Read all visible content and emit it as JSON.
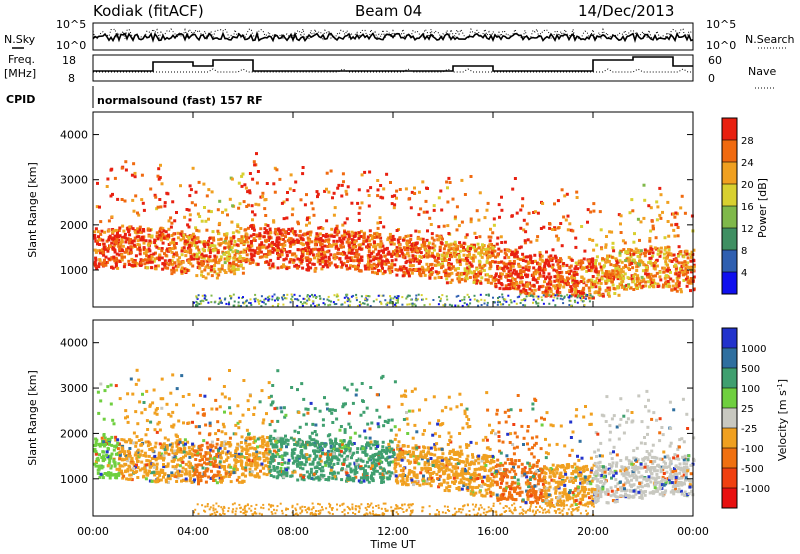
{
  "header": {
    "station": "Kodiak (fitACF)",
    "beam": "Beam 04",
    "date": "14/Dec/2013"
  },
  "aux_panels": {
    "nsky_label": "N.Sky",
    "nsearch_label": "N.Search",
    "freq_label_1": "Freq.",
    "freq_label_2": "[MHz]",
    "nave_label": "Nave",
    "cpid_label": "CPID",
    "cpid_value": "normalsound (fast) 157 RF",
    "noise_left_ticks": [
      "10^5",
      "10^0"
    ],
    "noise_right_ticks": [
      "10^5",
      "10^0"
    ],
    "freq_left_ticks": [
      "18",
      "8"
    ],
    "nave_right_ticks": [
      "60",
      "0"
    ]
  },
  "chart_data": [
    {
      "type": "heatmap",
      "title": "",
      "xlabel": "Time UT",
      "ylabel": "Slant Range [km]",
      "x_ticks": [
        "00:00",
        "04:00",
        "08:00",
        "12:00",
        "16:00",
        "20:00",
        "00:00"
      ],
      "x_hours": [
        0,
        4,
        8,
        12,
        16,
        20,
        24
      ],
      "xlim": [
        0,
        24
      ],
      "y_ticks": [
        1000,
        2000,
        3000,
        4000
      ],
      "ylim": [
        180,
        4500
      ],
      "colorbar": {
        "label": "Power [dB]",
        "tick_labels": [
          "28",
          "24",
          "20",
          "16",
          "12",
          "8",
          "4"
        ],
        "range": [
          0,
          32
        ],
        "colors": [
          "#1010ee",
          "#2f5fb0",
          "#3f8f62",
          "#7fb84a",
          "#d8d030",
          "#f0a020",
          "#f06a10",
          "#e82010"
        ]
      },
      "series": [
        {
          "x": [
            0,
            1,
            2,
            3,
            4,
            5,
            6,
            7,
            8,
            9,
            10,
            11,
            12,
            13,
            14,
            15,
            16,
            17,
            18,
            19,
            20,
            21,
            22,
            23
          ],
          "y": [
            1500,
            1550,
            1500,
            1400,
            1300,
            1400,
            1600,
            1500,
            1450,
            1500,
            1450,
            1400,
            1350,
            1300,
            1200,
            1150,
            1050,
            950,
            900,
            850,
            900,
            1050,
            1100,
            1000
          ],
          "value": [
            28,
            28,
            26,
            26,
            24,
            22,
            28,
            28,
            28,
            28,
            28,
            28,
            28,
            26,
            24,
            24,
            28,
            28,
            28,
            26,
            24,
            22,
            24,
            26
          ]
        }
      ]
    },
    {
      "type": "heatmap",
      "title": "",
      "xlabel": "Time UT",
      "ylabel": "Slant Range [km]",
      "x_ticks": [
        "00:00",
        "04:00",
        "08:00",
        "12:00",
        "16:00",
        "20:00",
        "00:00"
      ],
      "x_hours": [
        0,
        4,
        8,
        12,
        16,
        20,
        24
      ],
      "xlim": [
        0,
        24
      ],
      "y_ticks": [
        1000,
        2000,
        3000,
        4000
      ],
      "ylim": [
        180,
        4500
      ],
      "colorbar": {
        "label": "Velocity [m s",
        "label_sup": "-1",
        "label_close": "]",
        "tick_labels": [
          "1000",
          "500",
          "100",
          "25",
          "-25",
          "-100",
          "-500",
          "-1000"
        ],
        "colors": [
          "#2233cc",
          "#2f6f9f",
          "#3f9f6f",
          "#6fcf3f",
          "#c8c8c0",
          "#f0a020",
          "#f07010",
          "#f04010",
          "#e81010"
        ]
      },
      "series": [
        {
          "x": [
            0,
            1,
            2,
            3,
            4,
            5,
            6,
            7,
            8,
            9,
            10,
            11,
            12,
            13,
            14,
            15,
            16,
            17,
            18,
            19,
            20,
            21,
            22,
            23
          ],
          "y": [
            1500,
            1450,
            1400,
            1400,
            1350,
            1400,
            1500,
            1500,
            1450,
            1450,
            1400,
            1400,
            1350,
            1300,
            1200,
            1100,
            1000,
            950,
            900,
            900,
            950,
            1050,
            1100,
            1100
          ],
          "value": [
            25,
            -100,
            -100,
            -100,
            -500,
            -100,
            -100,
            100,
            100,
            100,
            100,
            100,
            -100,
            -100,
            -100,
            -100,
            -500,
            -500,
            -100,
            -100,
            -25,
            -25,
            -25,
            -25
          ]
        }
      ]
    }
  ]
}
